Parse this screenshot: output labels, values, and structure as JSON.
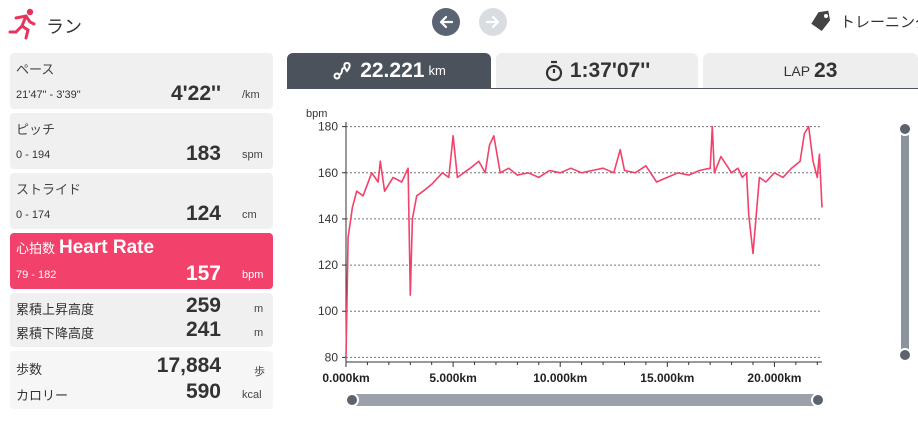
{
  "header": {
    "title": "ラン",
    "training_label": "トレーニング"
  },
  "stats": {
    "pace": {
      "label": "ペース",
      "range": "21'47\" - 3'39\"",
      "value": "4'22''",
      "unit": "/km"
    },
    "pitch": {
      "label": "ピッチ",
      "range": "0 - 194",
      "value": "183",
      "unit": "spm"
    },
    "stride": {
      "label": "ストライド",
      "range": "0 - 174",
      "value": "124",
      "unit": "cm"
    },
    "heart_rate": {
      "label_jp": "心拍数",
      "label_en": "Heart Rate",
      "range": "79 - 182",
      "value": "157",
      "unit": "bpm"
    },
    "elevation": {
      "up_label": "累積上昇高度",
      "up_value": "259",
      "up_unit": "m",
      "down_label": "累積下降高度",
      "down_value": "241",
      "down_unit": "m"
    },
    "steps": {
      "steps_label": "歩数",
      "steps_value": "17,884",
      "steps_unit": "歩",
      "cal_label": "カロリー",
      "cal_value": "590",
      "cal_unit": "kcal"
    }
  },
  "tabs": {
    "distance": {
      "value": "22.221",
      "unit": "km"
    },
    "time": {
      "value": "1:37'07''"
    },
    "lap": {
      "prefix": "LAP",
      "value": "23"
    }
  },
  "colors": {
    "accent": "#f2416a",
    "dark": "#4b525c"
  },
  "icons": {
    "logo": "runner-icon",
    "prev": "arrow-left-icon",
    "next": "arrow-right-icon",
    "training": "tag-icon",
    "distance": "route-icon",
    "time": "stopwatch-icon"
  },
  "chart_data": {
    "type": "line",
    "ylabel": "bpm",
    "xlabel": "",
    "xlim": [
      0,
      22.221
    ],
    "ylim": [
      78,
      182
    ],
    "yticks": [
      80,
      100,
      120,
      140,
      160,
      180
    ],
    "xticks": [
      0,
      5,
      10,
      15,
      20
    ],
    "xtick_labels": [
      "0.000km",
      "5.000km",
      "10.000km",
      "15.000km",
      "20.000km"
    ],
    "grid": true,
    "series": [
      {
        "color": "#f2416a",
        "x": [
          0,
          0.1,
          0.3,
          0.5,
          0.8,
          1.2,
          1.5,
          1.6,
          1.8,
          2.2,
          2.6,
          2.9,
          3.0,
          3.1,
          3.3,
          3.6,
          4.0,
          4.5,
          4.8,
          5.0,
          5.2,
          5.5,
          5.8,
          6.2,
          6.5,
          6.7,
          6.9,
          7.2,
          7.6,
          8.0,
          8.5,
          9.0,
          9.5,
          10.0,
          10.5,
          11.0,
          11.5,
          12.0,
          12.5,
          12.8,
          13.0,
          13.5,
          14.0,
          14.5,
          15.0,
          15.5,
          16.0,
          16.5,
          17.0,
          17.1,
          17.2,
          17.5,
          18.0,
          18.3,
          18.5,
          18.7,
          18.8,
          19.0,
          19.3,
          19.6,
          20.0,
          20.4,
          20.8,
          21.2,
          21.4,
          21.6,
          21.8,
          22.0,
          22.1,
          22.221
        ],
        "values": [
          80,
          132,
          145,
          152,
          150,
          160,
          156,
          165,
          152,
          158,
          156,
          162,
          107,
          140,
          150,
          152,
          155,
          160,
          158,
          176,
          158,
          160,
          162,
          165,
          160,
          172,
          176,
          160,
          162,
          159,
          160,
          158,
          161,
          160,
          162,
          160,
          161,
          162,
          160,
          170,
          161,
          160,
          163,
          156,
          158,
          160,
          159,
          161,
          162,
          180,
          160,
          167,
          160,
          162,
          158,
          160,
          142,
          125,
          158,
          156,
          160,
          158,
          162,
          165,
          177,
          180,
          165,
          158,
          168,
          145
        ]
      }
    ]
  }
}
